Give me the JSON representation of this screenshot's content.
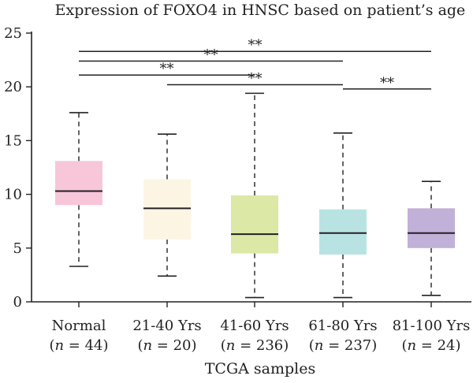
{
  "chart_data": {
    "type": "box",
    "title": "Expression of FOXO4 in HNSC based on patient’s age",
    "xlabel": "TCGA samples",
    "ylabel": "",
    "ylim": [
      0,
      25
    ],
    "yticks": [
      0,
      5,
      10,
      15,
      20,
      25
    ],
    "grid": false,
    "groups": [
      {
        "name": "Normal",
        "n_label": "n = 44",
        "color": "#f7c6d9",
        "whisker_low": 3.3,
        "q1": 9.0,
        "median": 10.3,
        "q3": 13.1,
        "whisker_high": 17.6
      },
      {
        "name": "21-40 Yrs",
        "n_label": "n = 20",
        "color": "#fdf5e4",
        "whisker_low": 2.4,
        "q1": 5.8,
        "median": 8.7,
        "q3": 11.4,
        "whisker_high": 15.6
      },
      {
        "name": "41-60 Yrs",
        "n_label": "n = 236",
        "color": "#dce8a6",
        "whisker_low": 0.4,
        "q1": 4.5,
        "median": 6.3,
        "q3": 9.9,
        "whisker_high": 19.4
      },
      {
        "name": "61-80 Yrs",
        "n_label": "n = 237",
        "color": "#b9e3e3",
        "whisker_low": 0.4,
        "q1": 4.4,
        "median": 6.4,
        "q3": 8.6,
        "whisker_high": 15.7
      },
      {
        "name": "81-100 Yrs",
        "n_label": "n = 24",
        "color": "#c1b0d7",
        "whisker_low": 0.6,
        "q1": 5.0,
        "median": 6.4,
        "q3": 8.7,
        "whisker_high": 11.2
      }
    ],
    "significance": [
      {
        "from": 0,
        "to": 4,
        "y": 23.3,
        "label": "**"
      },
      {
        "from": 0,
        "to": 3,
        "y": 22.4,
        "label": "**"
      },
      {
        "from": 0,
        "to": 2,
        "y": 21.1,
        "label": "**"
      },
      {
        "from": 1,
        "to": 3,
        "y": 20.2,
        "label": "**"
      },
      {
        "from": 3,
        "to": 4,
        "y": 19.8,
        "label": "**"
      }
    ]
  }
}
